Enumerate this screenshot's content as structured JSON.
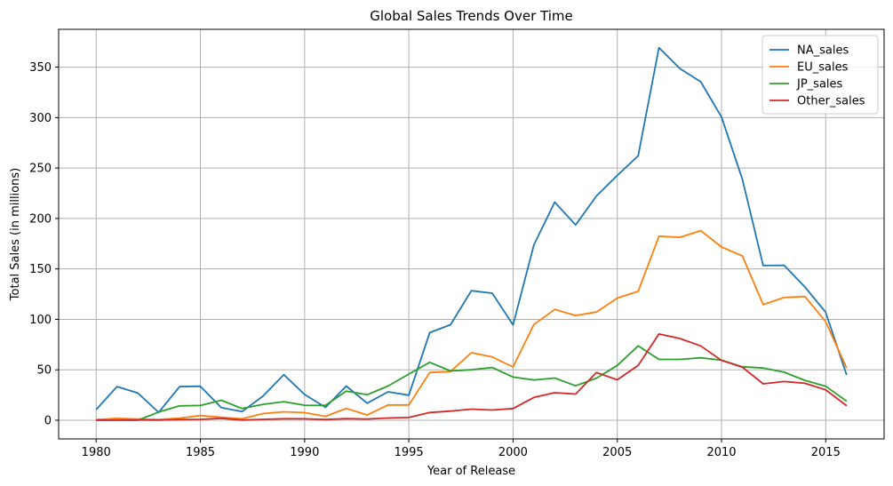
{
  "chart_data": {
    "type": "line",
    "title": "Global Sales Trends Over Time",
    "xlabel": "Year of Release",
    "ylabel": "Total Sales (in millions)",
    "xlim": [
      1978.2,
      2017.8
    ],
    "ylim": [
      -18.5,
      387.5
    ],
    "xticks": [
      1980,
      1985,
      1990,
      1995,
      2000,
      2005,
      2010,
      2015
    ],
    "yticks": [
      0,
      50,
      100,
      150,
      200,
      250,
      300,
      350
    ],
    "grid": true,
    "legend_position": "top-right",
    "x": [
      1980,
      1981,
      1982,
      1983,
      1984,
      1985,
      1986,
      1987,
      1988,
      1989,
      1990,
      1991,
      1992,
      1993,
      1994,
      1995,
      1996,
      1997,
      1998,
      1999,
      2000,
      2001,
      2002,
      2003,
      2004,
      2005,
      2006,
      2007,
      2008,
      2009,
      2010,
      2011,
      2012,
      2013,
      2014,
      2015,
      2016
    ],
    "series": [
      {
        "name": "NA_sales",
        "color": "#1f77b4",
        "values": [
          10.6,
          33.4,
          26.9,
          7.8,
          33.3,
          33.7,
          12.5,
          8.5,
          23.9,
          45.2,
          25.5,
          12.8,
          33.9,
          16.9,
          28.2,
          24.8,
          86.8,
          94.7,
          128.4,
          125.9,
          94.5,
          173.9,
          216.2,
          193.6,
          222.4,
          242.6,
          262.1,
          369.3,
          348.7,
          335.5,
          300.6,
          238.8,
          153.3,
          153.6,
          132.1,
          106.9,
          44.9
        ]
      },
      {
        "name": "EU_sales",
        "color": "#ff7f0e",
        "values": [
          0.7,
          1.8,
          1.2,
          0.8,
          2.1,
          4.7,
          3.0,
          1.4,
          6.6,
          8.4,
          7.6,
          3.9,
          11.7,
          5.2,
          15.1,
          15.1,
          47.3,
          48.3,
          66.9,
          62.7,
          52.8,
          94.9,
          109.8,
          103.8,
          107.3,
          121.1,
          127.8,
          182.4,
          181.3,
          187.9,
          171.7,
          162.8,
          114.7,
          121.6,
          122.7,
          97.7,
          51.8
        ]
      },
      {
        "name": "JP_sales",
        "color": "#2ca02c",
        "values": [
          0.0,
          0.0,
          0.0,
          8.1,
          14.3,
          14.6,
          19.8,
          11.6,
          15.8,
          18.4,
          14.9,
          14.7,
          28.9,
          25.3,
          33.9,
          45.8,
          57.4,
          48.9,
          50.0,
          52.3,
          42.8,
          39.9,
          41.8,
          34.2,
          41.7,
          54.3,
          73.7,
          60.3,
          60.3,
          61.9,
          59.5,
          53.0,
          51.8,
          47.6,
          39.5,
          33.7,
          18.9
        ]
      },
      {
        "name": "Other_sales",
        "color": "#d62728",
        "values": [
          0.1,
          0.3,
          0.3,
          0.1,
          0.7,
          0.9,
          1.9,
          0.2,
          0.9,
          1.5,
          1.4,
          0.7,
          1.6,
          1.2,
          2.2,
          2.7,
          7.7,
          9.1,
          11.0,
          10.1,
          11.6,
          22.6,
          27.3,
          26.0,
          47.3,
          40.1,
          54.4,
          85.5,
          81.0,
          73.7,
          59.3,
          52.6,
          36.1,
          38.4,
          36.6,
          30.1,
          14.4
        ]
      }
    ]
  }
}
